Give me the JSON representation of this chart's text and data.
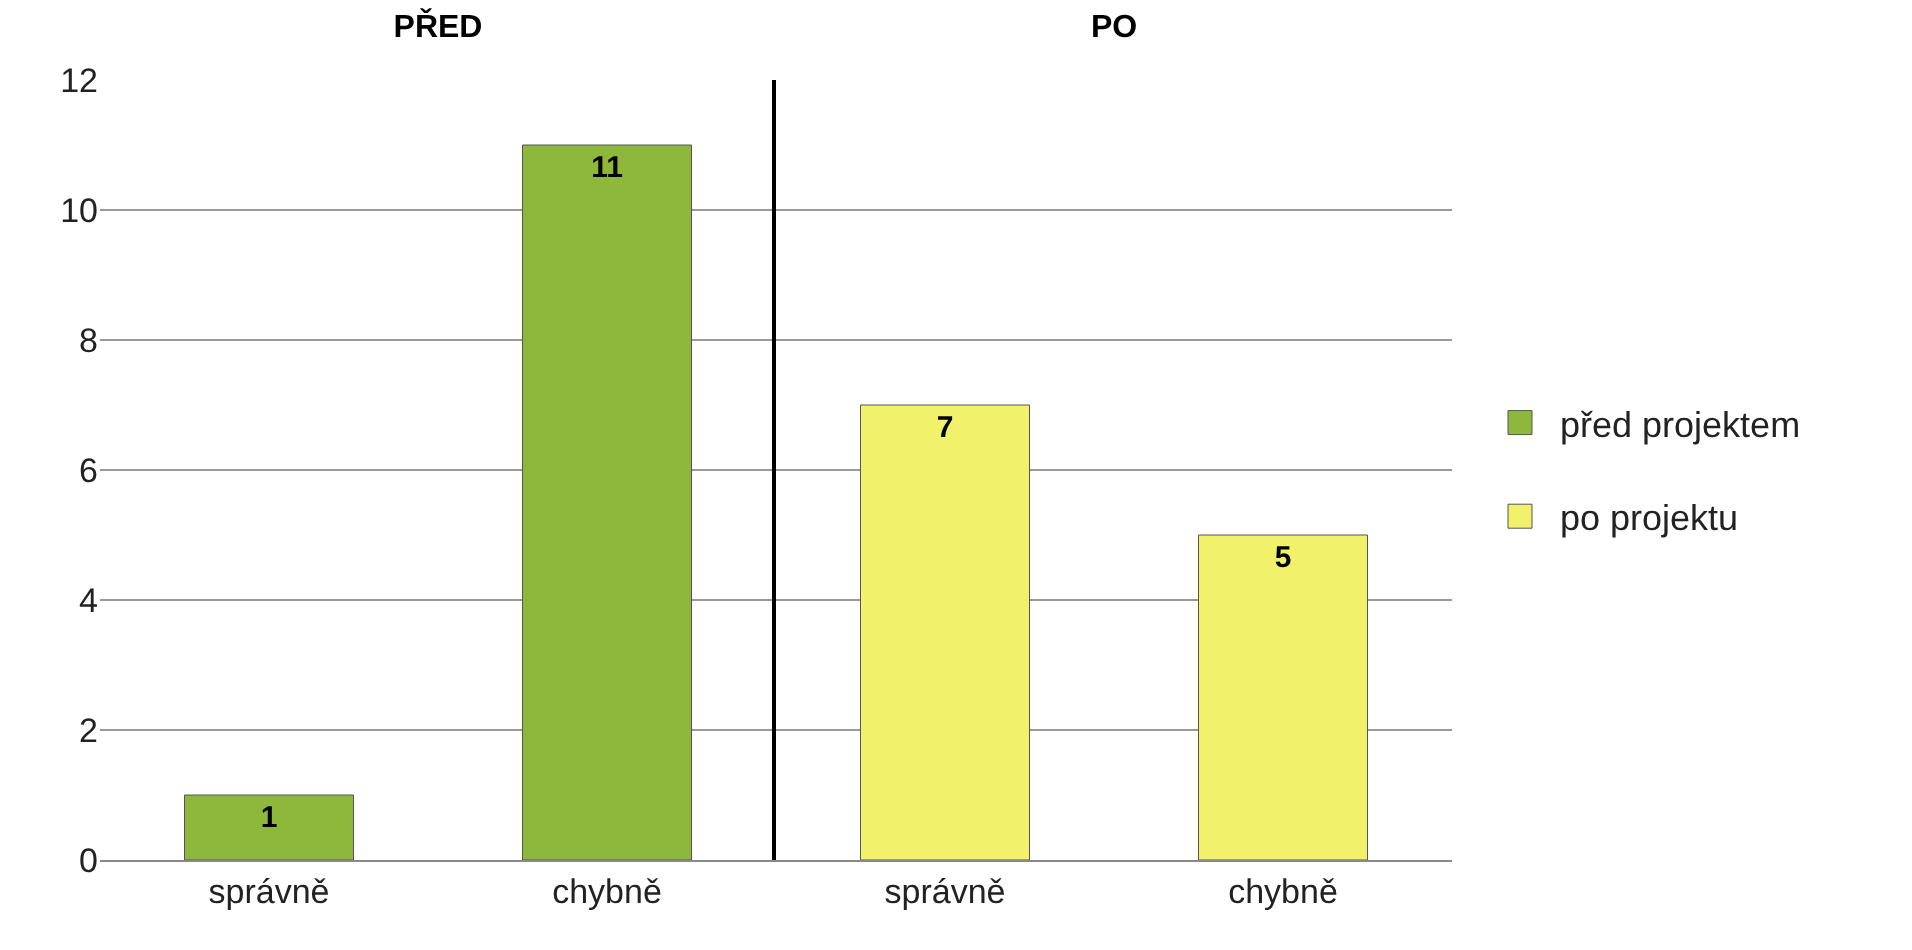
{
  "chart_data": [
    {
      "type": "bar",
      "title": "PŘED",
      "categories": [
        "správně",
        "chybně"
      ],
      "series": [
        {
          "name": "před projektem",
          "color": "#8db83c",
          "values": [
            1,
            11
          ]
        }
      ],
      "ylim": [
        0,
        12
      ],
      "yticks": [
        0,
        2,
        4,
        6,
        8,
        10,
        12
      ],
      "grid": "y",
      "legend": "right",
      "data_labels": true
    },
    {
      "type": "bar",
      "title": "PO",
      "categories": [
        "správně",
        "chybně"
      ],
      "series": [
        {
          "name": "po projektu",
          "color": "#f2f26a",
          "values": [
            7,
            5
          ]
        }
      ],
      "ylim": [
        0,
        12
      ],
      "yticks": [
        0,
        2,
        4,
        6,
        8,
        10,
        12
      ],
      "grid": "y",
      "legend": "right",
      "data_labels": true,
      "tick_labels": "x"
    }
  ]
}
